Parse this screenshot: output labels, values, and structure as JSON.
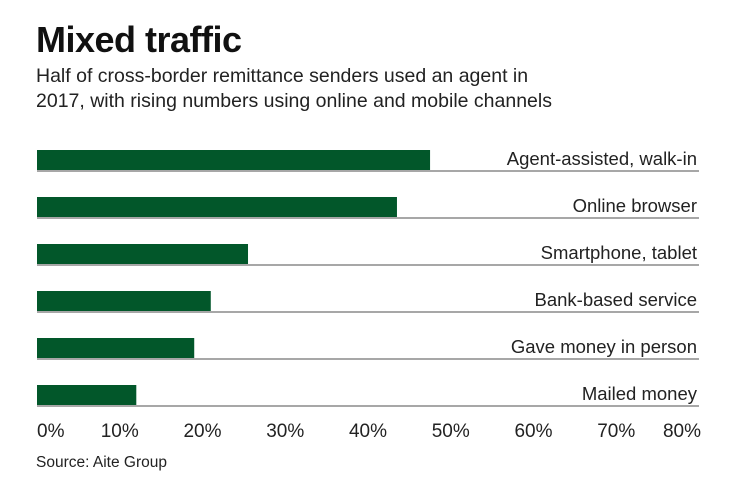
{
  "chart_data": {
    "type": "bar",
    "orientation": "horizontal",
    "title": "Mixed traffic",
    "subtitle_lines": [
      "Half of cross-border remittance senders used an agent in",
      "2017, with rising numbers using online and mobile channels"
    ],
    "categories": [
      "Agent-assisted, walk-in",
      "Online browser",
      "Smartphone, tablet",
      "Bank-based service",
      "Gave money in person",
      "Mailed money"
    ],
    "values": [
      47.5,
      43.5,
      25.5,
      21,
      19,
      12
    ],
    "xlim": [
      0,
      80
    ],
    "xticks": [
      0,
      10,
      20,
      30,
      40,
      50,
      60,
      70,
      80
    ],
    "xtick_labels": [
      "0%",
      "10%",
      "20%",
      "30%",
      "40%",
      "50%",
      "60%",
      "70%",
      "80%"
    ],
    "xlabel": "",
    "ylabel": "",
    "grid": false,
    "legend": "none",
    "source": "Source: Aite Group",
    "colors": {
      "bar": "#02572a",
      "baseline": "#8a8a8a"
    }
  }
}
